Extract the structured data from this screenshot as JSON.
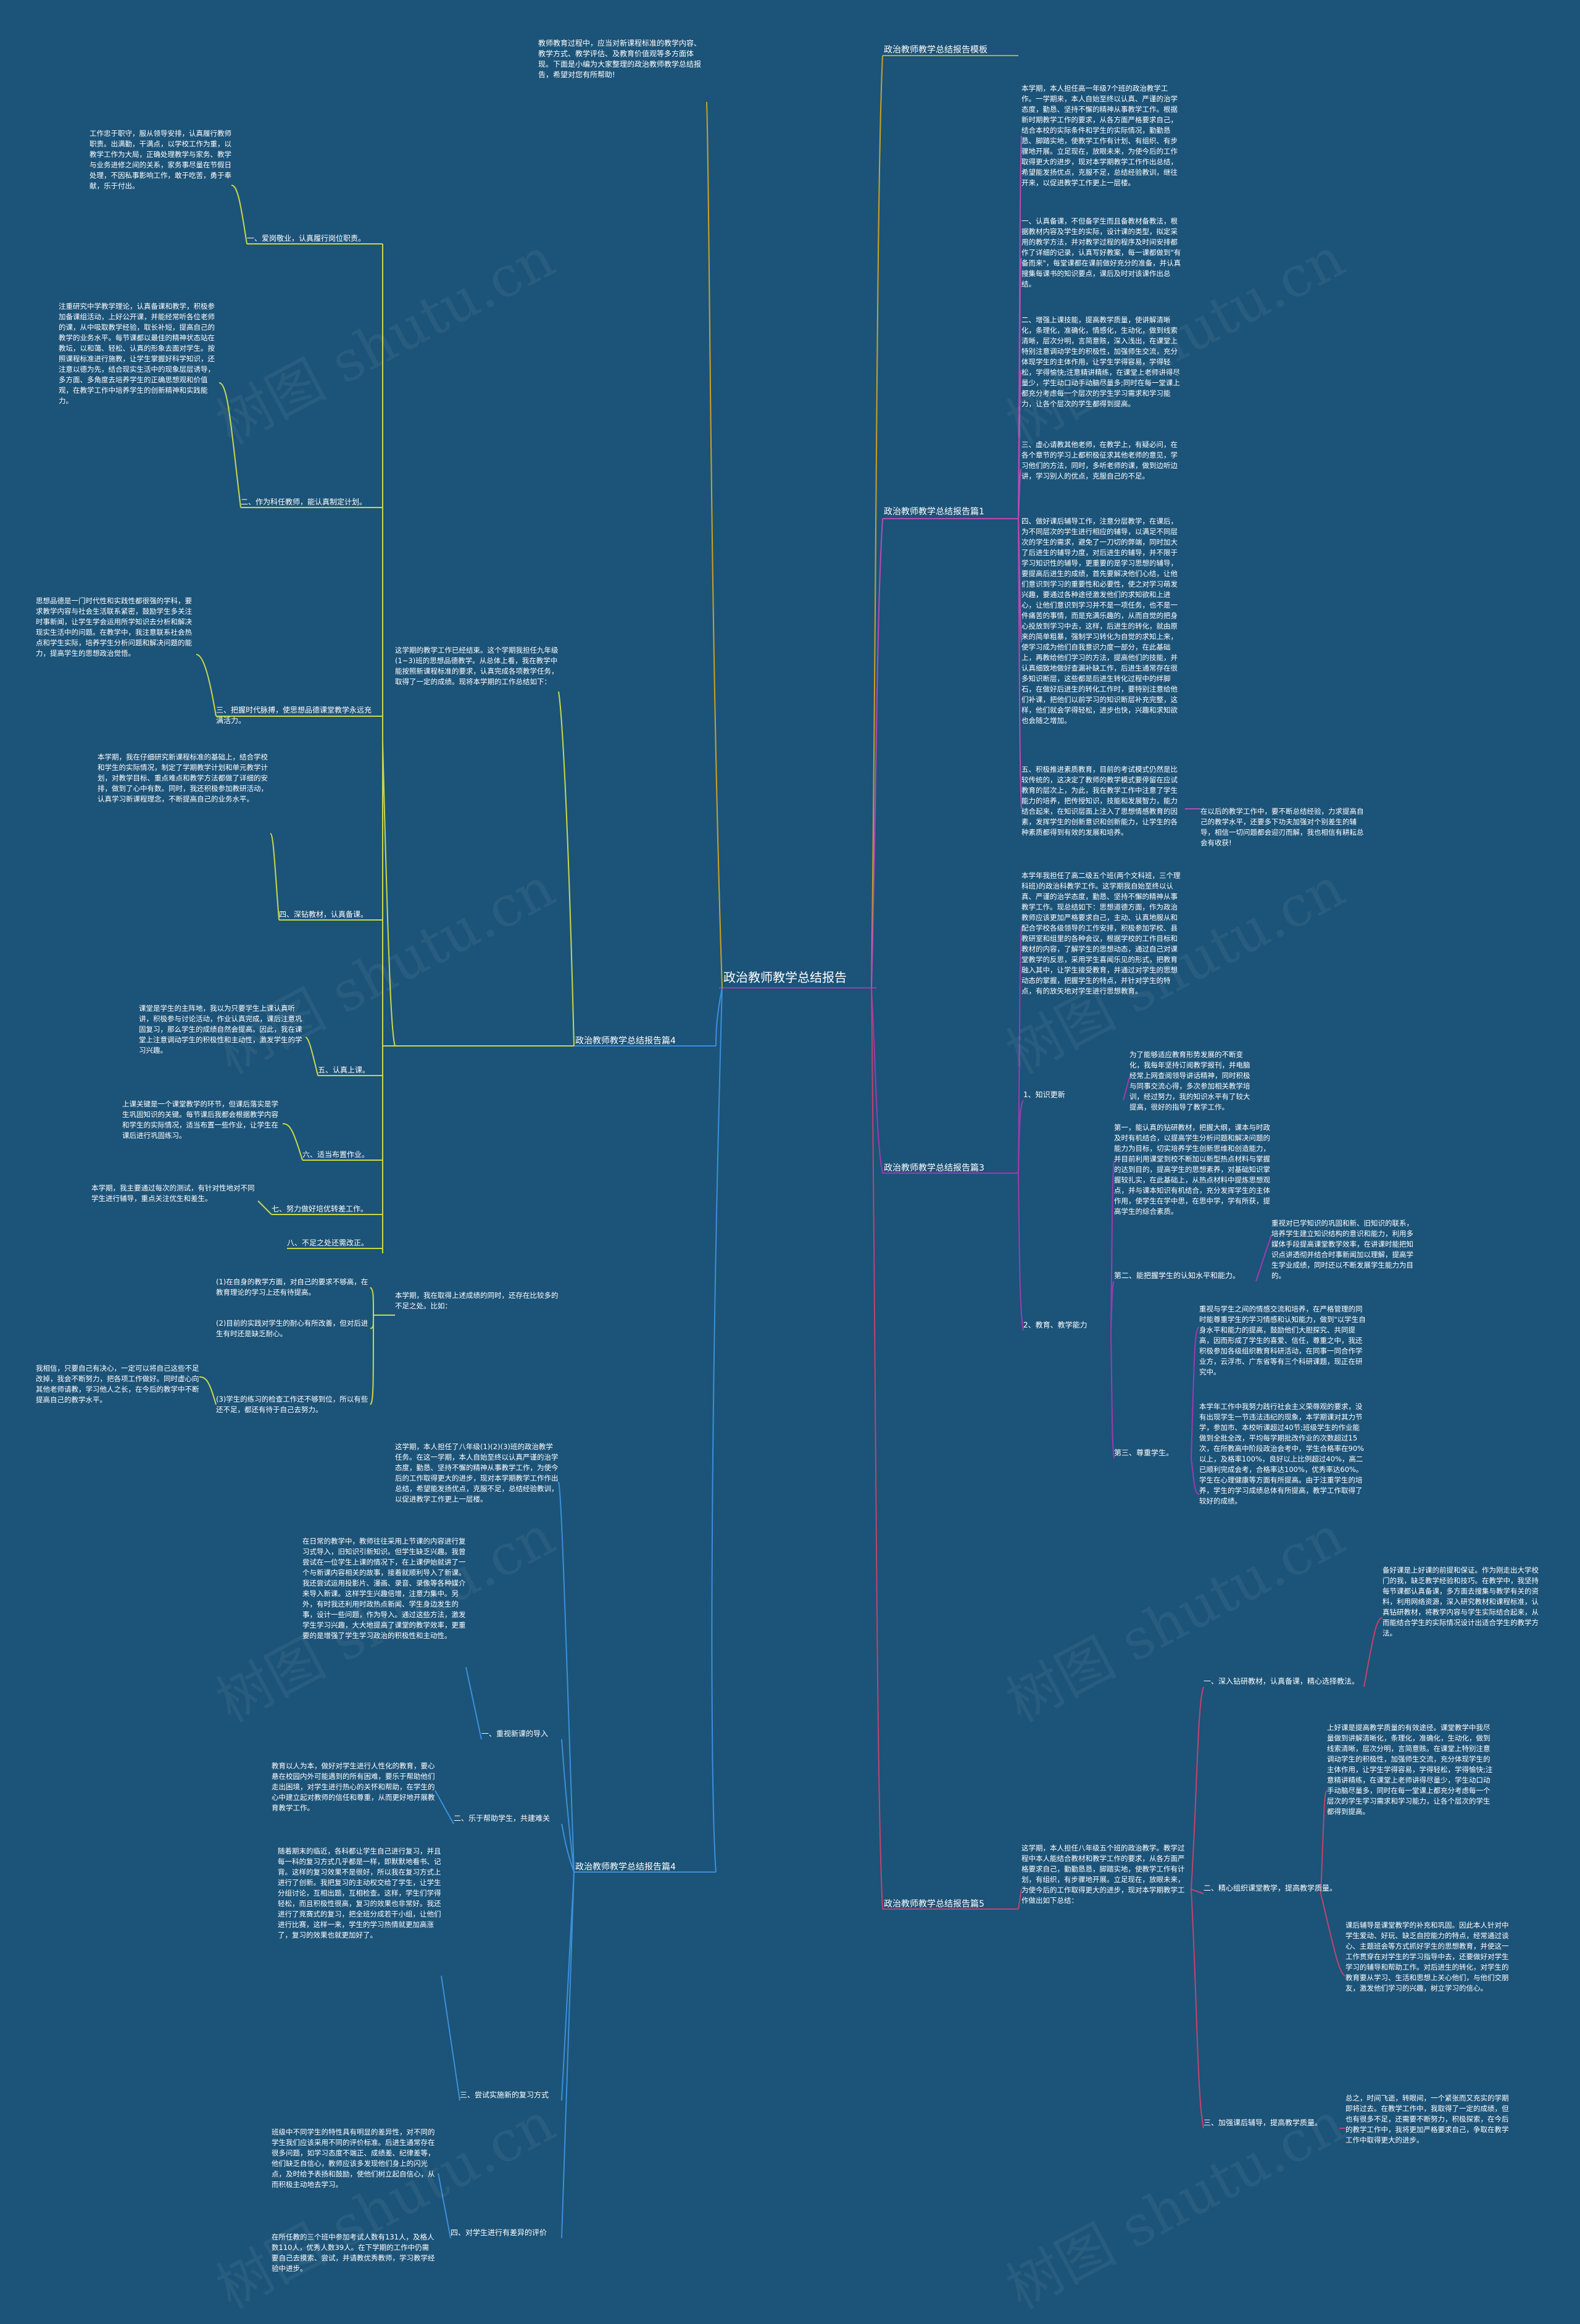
{
  "watermark": "树图 shutu.cn",
  "center": "政治教师教学总结报告",
  "intro": "教师教育过程中，应当对新课程标准的教学内容、教学方式、教学评估、及教育价值观等多方面体现。下面是小编为大家整理的政治教师教学总结报告，希望对您有所帮助!",
  "branch1": {
    "label": "政治教师教学总结报告模板",
    "text": "本学期，本人担任高一年级7个班的政治教学工作。一学期来，本人自始至终以认真、严谨的治学态度，勤恳、坚持不懈的精神从事教学工作。根据新时期教学工作的要求，从各方面严格要求自己，结合本校的实际条件和学生的实际情况，勤勤恳恳、脚踏实地，使教学工作有计划、有组织、有步骤地开展。立足现在，放眼未来，为使今后的工作取得更大的进步，现对本学期教学工作作出总结，希望能发扬优点，克服不足，总结经验教训，继往开来，以促进教学工作更上一层楼。"
  },
  "branch2": {
    "label": "政治教师教学总结报告篇1",
    "items": [
      "一、认真备课，不但备学生而且备教材备教法，根据教材内容及学生的实际，设计课的类型，拟定采用的教学方法，并对教学过程的程序及时间安排都作了详细的记录，认真写好教案，每一课都做到\"有备而来\"，每堂课都在课前做好充分的准备，并认真搜集每课书的知识要点，课后及时对该课作出总结。",
      "二、增强上课技能，提高教学质量，使讲解清晰化，条理化，准确化，情感化，生动化，做到线索清晰，层次分明，言简意赅，深入浅出，在课堂上特别注意调动学生的积极性，加强师生交流，充分体现学生的主体作用，让学生学得容易，学得轻松，学得愉快;注意精讲精练，在课堂上老师讲得尽量少，学生动口动手动脑尽量多;同时在每一堂课上都充分考虑每一个层次的学生学习需求和学习能力，让各个层次的学生都得到提高。",
      "三、虚心请教其他老师，在教学上，有疑必问，在各个章节的学习上都积极征求其他老师的意见，学习他们的方法，同时，多听老师的课，做到边听边讲，学习别人的优点，克服自己的不足。",
      "四、做好课后辅导工作，注意分层教学，在课后，为不同层次的学生进行相应的辅导，以满足不同层次的学生的需求，避免了一刀切的弊端，同时加大了后进生的辅导力度，对后进生的辅导，并不限于学习知识性的辅导，更重要的是学习思想的辅导，要提高后进生的成绩，首先要解决他们心结，让他们意识到学习的重要性和必要性，使之对学习萌发兴趣，要通过各种途径激发他们的求知欲和上进心，让他们意识到学习并不是一项任务，也不是一件痛苦的事情，而是充满乐趣的，从而自觉的把身心投放到学习中去，这样，后进生的转化，就由原来的简单粗暴，强制学习转化为自觉的求知上来，使学习成为他们自我意识力度一部分，在此基础上，再教给他们学习的方法，提高他们的技能，并认真细致地做好查漏补缺工作，后进生通常存在很多知识断层，这些都是后进生转化过程中的绊脚石，在做好后进生的转化工作时，要特别注意给他们补课，把他们以前学习的知识断层补充完整，这样，他们就会学得轻松，进步也快，兴趣和求知欲也会随之增加。",
      "五、积极推进素质教育，目前的考试模式仍然是比较传统的，这决定了教师的教学模式要停留在应试教育的层次上，为此，我在教学工作中注意了学生能力的培养，把传授知识，技能和发展智力，能力结合起来，在知识层面上注入了思想情感教育的因素，发挥学生的创新意识和创新能力，让学生的各种素质都得到有效的发展和培养。"
    ],
    "note": "在以后的教学工作中，要不断总结经验，力求提高自己的教学水平，还要多下功夫加强对个别差生的辅导，相信一切问题都会迎刃而解，我也相信有耕耘总会有收获!"
  },
  "branch3": {
    "label": "政治教师教学总结报告篇3",
    "text": "本学年我担任了高二级五个班(两个文科班，三个理科班)的政治科教学工作。这学期我自始至终以认真、严谨的治学态度，勤恳、坚持不懈的精神从事教学工作。现总结如下：思想道德方面，作为政治教师应该更加严格要求自己，主动、认真地服从和配合学校各级领导的工作安排，积极参加学校、县教研室和组里的各种会议，根据学校的工作目标和教材的内容，了解学生的思想动态，通过自己对课堂教学的反思，采用学生喜闻乐见的形式，把教育融入其中，让学生接受教育，并通过对学生的思想动态的掌握，把握学生的特点，并针对学生的特点，有的放矢地对学生进行思想教育。",
    "items": [
      {
        "label": "1、知识更新",
        "text": "为了能够适应教育形势发展的不断变化，我每年坚持订阅教学报刊，并电脑经常上网查阅领导讲话精神，同时积极与同事交流心得，多次参加相关教学培训，经过努力，我的知识水平有了较大提高，很好的指导了教学工作。"
      },
      {
        "label": "2、教育、教学能力",
        "text": "第一，能认真的钻研教材，把握大纲，课本与时政及时有机结合，以提高学生分析问题和解决问题的能力为目标，切实培养学生创新思维和创造能力，并目前利用课堂到校不断加以新型热点材料与掌握的达到目的，提高学生的思想素养，对基础知识掌握较扎实，在此基础上，从热点材料中提炼思想观点，并与课本知识有机结合，充分发挥学生的主体作用，使学生在学中思，在思中学，学有所获，提高学生的综合素质。",
        "sub": [
          {
            "label": "第二、能把握学生的认知水平和能力。",
            "text": "重视对已学知识的巩固和新、旧知识的联系，培养学生建立知识结构的意识和能力，利用多媒体手段提高课堂教学效率，在讲课时能把知识点讲透彻并结合时事新闻加以理解，提高学生学业成绩，同时还以不断发展学生能力为目的。"
          },
          {
            "label": "第三、尊重学生。",
            "text": "重视与学生之间的情感交流和培养，在严格管理的同时能尊重学生的学习情感和认知能力，做到\"以学生自身水平和能力的提高，鼓励他们大胆探究、共同提高，因而形成了学生的喜爱、信任，尊重之中，我还积极参加各级组织教育科研活动，在同事一同合作学业方，云浮市、广东省等有三个科研课题，现正在研究中。"
          },
          {
            "label": "",
            "text": "本学年工作中我努力践行社会主义荣辱观的要求，没有出现学生一节违法违纪的现象，本学期课对其力节学，参加市、本校听课超过40节;班级学生的作业能做到全批全改，平均每学期批改作业的次数超过15次，在所教高中阶段政治会考中，学生合格率在90%以上，及格率100%，良好以上比例超过40%，高二已顺利完成会考，合格率达100%，优秀率达60%。学生在心理健康等方面有所提高。由于注重学生的培养，学生的学习成绩总体有所提高，教学工作取得了较好的成绩。"
          }
        ]
      }
    ]
  },
  "branch4": {
    "label": "政治教师教学总结报告篇4",
    "text": "这学期，本人担任了八年级(1)(2)(3)班的政治教学任务。在这一学期，本人自始至终以认真严谨的治学态度，勤恳、坚持不懈的精神从事教学工作，为使今后的工作取得更大的进步，现对本学期教学工作作出总结，希望能发扬优点，克服不足，总结经验教训，以促进教学工作更上一层楼。",
    "items": [
      {
        "label": "一、重视新课的导入",
        "text": "在日常的教学中，教师往往采用上节课的内容进行复习式导入，旧知识引新知识。但学生缺乏兴趣。我曾尝试在一位学生上课的情况下，在上课伊始就讲了一个与新课内容相关的故事，接着就顺利导入了新课。我还尝试运用投影片、漫画、录音、录像等各种媒介来导入新课。这样学生兴趣倍增，注意力集中。另外，有时我还利用时政热点新闻、学生身边发生的事，设计一些问题，作为导入。通过这些方法，激发学生学习兴趣，大大地提高了课堂的教学效率，更重要的是增强了学生学习政治的积极性和主动性。"
      },
      {
        "label": "二、乐于帮助学生，共建难关",
        "text": "教育以人为本，做好对学生进行人性化的教育，要心悬在校园内外可能遇到的所有困难，要乐于帮助他们走出困境，对学生进行热心的关怀和帮助，在学生的心中建立起对教师的信任和尊重，从而更好地开展教育教学工作。"
      },
      {
        "label": "三、尝试实施新的复习方式",
        "text": "随着期末的临近，各科都让学生自己进行复习，并且每一科的复习方式几乎都是一样，即默默地看书、记背。这样的复习效果不是很好，所以我在复习方式上进行了创新。我把复习的主动权交给了学生，让学生分组讨论，互相出题，互相检查。这样，学生们学得轻松，而且积极性很高，复习的效果也非常好。我还进行了竞赛式的复习，把全班分成若干小组，让他们进行比赛，这样一来，学生的学习热情就更加高涨了，复习的效果也就更加好了。"
      },
      {
        "label": "四、对学生进行有差异的评价",
        "text": "班级中不同学生的特性具有明显的差异性，对不同的学生我们应该采用不同的评价标准。后进生通常存在很多问题，如学习态度不端正、成绩差、纪律差等，他们缺乏自信心，教师应该多发现他们身上的闪光点，及时给予表扬和鼓励，使他们树立起自信心，从而积极主动地去学习。"
      }
    ],
    "note": "在所任教的三个班中参加考试人数有131人，及格人数110人，优秀人数39人。在下学期的工作中仍需要自己去摸索、尝试，并请教优秀教师，学习教学经验中进步。"
  },
  "branch5": {
    "label": "政治教师教学总结报告篇5",
    "text": "这学期，本人担任八年级五个班的政治教学。教学过程中本人能结合教材和教学工作的要求，从各方面严格要求自己，勤勤恳恳，脚踏实地，使教学工作有计划，有组织，有步骤地开展。立足现在，放眼未来，为使今后的工作取得更大的进步，现对本学期教学工作做出如下总结：",
    "items": [
      {
        "label": "一、深入钻研教材，认真备课，精心选择教法。",
        "text": "备好课是上好课的前提和保证。作为刚走出大学校门的我，缺乏教学经验和技巧。在教学中，我坚持每节课都认真备课，多方面去搜集与教学有关的资料，利用网络资源，深入研究教材和课程标准，认真钻研教材，将教学内容与学生实际结合起来，从而能结合学生的实际情况设计出适合学生的教学方法。"
      },
      {
        "label": "二、精心组织课堂教学，提高教学质量。",
        "text": "上好课是提高教学质量的有效途径。课堂教学中我尽量做到讲解清晰化，条理化，准确化，生动化，做到线索清晰，层次分明，言简意赅。在课堂上特别注意调动学生的积极性，加强师生交流，充分体现学生的主体作用，让学生学得容易，学得轻松，学得愉快;注意精讲精练，在课堂上老师讲得尽量少，学生动口动手动脑尽量多，同时在每一堂课上都充分考虑每一个层次的学生学习需求和学习能力，让各个层次的学生都得到提高。"
      },
      {
        "label": "",
        "text": "课后辅导是课堂教学的补充和巩固。因此本人针对中学生爱动、好玩、缺乏自控能力的特点，经常通过谈心、主题班会等方式抓好学生的思想教育，并使这一工作贯穿在对学生的学习指导中去，还要做好对学生学习的辅导和帮助工作。对后进生的转化，对学生的教育要从学习、生活和思想上关心他们，与他们交朋友，激发他们学习的兴趣，树立学习的信心。"
      },
      {
        "label": "三、加强课后辅导，提高教学质量。",
        "text": "总之，时间飞逝，转眼间，一个紧张而又充实的学期即将过去。在教学工作中，我取得了一定的成绩，但也有很多不足，还需要不断努力，积极探索，在今后的教学工作中，我将更加严格要求自己，争取在教学工作中取得更大的进步。"
      }
    ]
  },
  "branch4_left": {
    "items": [
      {
        "label": "一、爱岗敬业，认真履行岗位职责。",
        "text": "工作忠于职守，服从领导安排，认真履行教师职责。出满勤，干满点，以学校工作为重，以教学工作为大局，正确处理教学与家务、教学与业务进修之间的关系，家务事尽量在节假日处理，不因私事影响工作，敢于吃苦，勇于奉献，乐于付出。"
      },
      {
        "label": "二、作为科任教师，能认真制定计划。",
        "text": "注重研究中学教学理论，认真备课和教学，积极参加备课组活动，上好公开课，并能经常听各位老师的课，从中吸取教学经验，取长补短，提高自己的教学的业务水平。每节课都以最佳的精神状态站在教坛，以和蔼、轻松、认真的形象去面对学生。按照课程标准进行施教，让学生掌握好科学知识，还注意以德为先，结合现实生活中的现象层层诱导，多方面、多角度去培养学生的正确思想观和价值观，在教学工作中培养学生的创新精神和实践能力。"
      },
      {
        "label": "三、把握时代脉搏，使思想品德课堂教学永远充满活力。",
        "text": "思想品德是一门时代性和实践性都很强的学科，要求教学内容与社会生活联系紧密，鼓励学生多关注时事新闻，让学生学会运用所学知识去分析和解决现实生活中的问题。在教学中，我注意联系社会热点和学生实际，培养学生分析问题和解决问题的能力，提高学生的思想政治觉悟。"
      },
      {
        "label": "四、深钻教材，认真备课。",
        "text": "本学期，我在仔细研究新课程标准的基础上，结合学校和学生的实际情况，制定了学期教学计划和单元教学计划，对教学目标、重点难点和教学方法都做了详细的安排，做到了心中有数。同时，我还积极参加教研活动，认真学习新课程理念，不断提高自己的业务水平。"
      },
      {
        "label": "五、认真上课。",
        "text": "课堂是学生的主阵地，我以为只要学生上课认真听讲，积极参与讨论活动，作业认真完成，课后注意巩固复习，那么学生的成绩自然会提高。因此，我在课堂上注意调动学生的积极性和主动性，激发学生的学习兴趣。"
      },
      {
        "label": "六、适当布置作业。",
        "text": "上课关键是一个课堂教学的环节，但课后落实是学生巩固知识的关键。每节课后我都会根据教学内容和学生的实际情况，适当布置一些作业，让学生在课后进行巩固练习。"
      },
      {
        "label": "七、努力做好培优转差工作。",
        "text": "本学期，我主要通过每次的测试，有针对性地对不同学生进行辅导，重点关注优生和差生。"
      },
      {
        "label": "八、不足之处还需改正。",
        "text": ""
      }
    ],
    "summary": "这学期的教学工作已经结束。这个学期我担任九年级(1~3)班的思想品德教学。从总体上看，我在教学中能按照新课程标准的要求，认真完成各项教学任务，取得了一定的成绩。现将本学期的工作总结如下：",
    "shortcomings_intro": "本学期，我在取得上述成绩的同时，还存在比较多的不足之处。比如：",
    "shortcomings": [
      "(1)在自身的教学方面，对自己的要求不够高，在教育理论的学习上还有待提高。",
      "(2)目前的实践对学生的耐心有所改善，但对后进生有时还是缺乏耐心。",
      "(3)学生的练习的检查工作还不够到位，所以有些还不足，都还有待于自己去努力。"
    ],
    "closing": "我相信，只要自己有决心，一定可以将自己这些不足改掉，我会不断努力，把各项工作做好。同时虚心向其他老师请教，学习他人之长，在今后的教学中不断提高自己的教学水平。"
  },
  "colors": {
    "background": "#1c5378",
    "line_top": "#c9a227",
    "line_branch2": "#b84ab5",
    "line_branch3": "#9c3bb0",
    "line_branch4": "#3b8fd9",
    "line_branch5": "#c0436f",
    "line_left": "#c8d84a",
    "text": "#ffffff"
  }
}
